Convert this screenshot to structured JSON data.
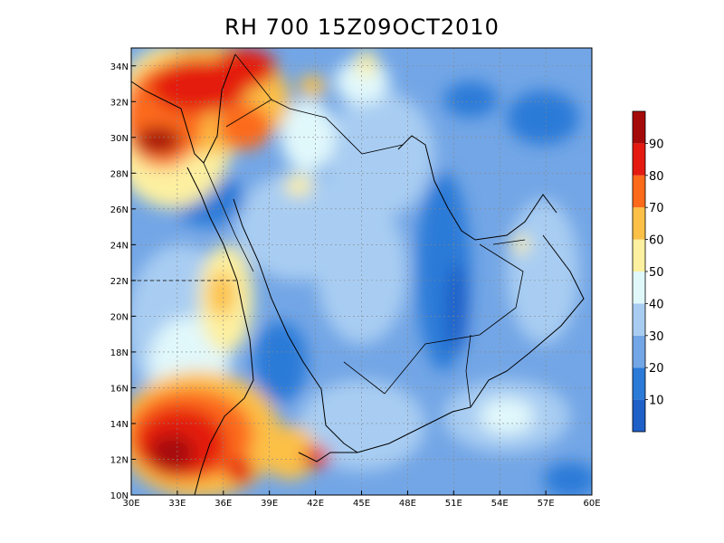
{
  "title": "RH 700 15Z09OCT2010",
  "map": {
    "lon_range": [
      30,
      60
    ],
    "lat_range": [
      10,
      35
    ],
    "grid": "dotted",
    "lon_ticks": [
      "30E",
      "33E",
      "36E",
      "39E",
      "42E",
      "45E",
      "48E",
      "51E",
      "54E",
      "57E",
      "60E"
    ],
    "lat_ticks": [
      "10N",
      "12N",
      "14N",
      "16N",
      "18N",
      "20N",
      "22N",
      "24N",
      "26N",
      "28N",
      "30N",
      "32N",
      "34N"
    ],
    "lon_values": [
      30,
      33,
      36,
      39,
      42,
      45,
      48,
      51,
      54,
      57,
      60
    ],
    "lat_values": [
      10,
      12,
      14,
      16,
      18,
      20,
      22,
      24,
      26,
      28,
      30,
      32,
      34
    ]
  },
  "colorbar": {
    "labels": [
      "10",
      "20",
      "30",
      "40",
      "50",
      "60",
      "70",
      "80",
      "90"
    ],
    "colors": [
      "#1f5fc8",
      "#2b7ad8",
      "#73a6e6",
      "#a9cdf2",
      "#e1f8fb",
      "#fdf0a0",
      "#fcc047",
      "#fc6a1a",
      "#e41a10",
      "#a50a0a"
    ],
    "levels": [
      10,
      20,
      30,
      40,
      50,
      60,
      70,
      80,
      90
    ]
  }
}
